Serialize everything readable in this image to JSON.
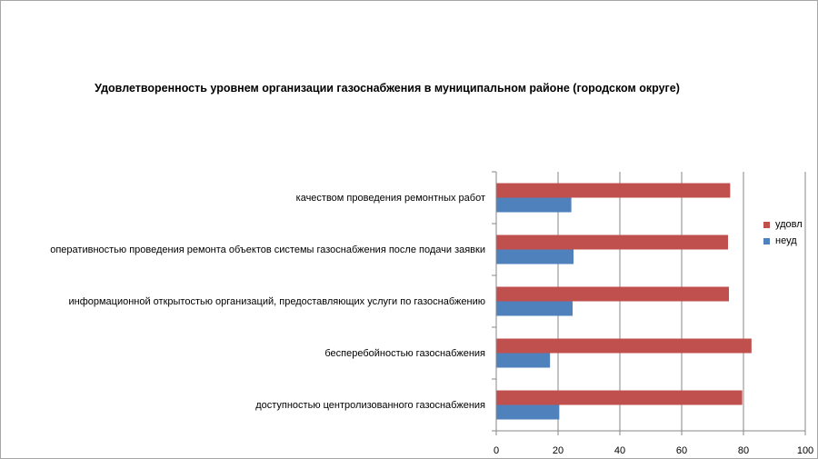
{
  "chart_data": {
    "type": "bar",
    "orientation": "horizontal",
    "title": "Удовлетворенность уровнем организации газоснабжения в муниципальном районе (городском округе)",
    "categories": [
      "качеством проведения ремонтных работ",
      "оперативностью проведения ремонта объектов системы газоснабжения после подачи заявки",
      "информационной открытостью организаций, предоставляющих услуги по газоснабжению",
      "бесперебойностью газоснабжения",
      "доступностью центролизованного газоснабжения"
    ],
    "series": [
      {
        "name": "удовл",
        "color": "#c0504d",
        "values": [
          75.7,
          75.0,
          75.3,
          82.6,
          79.6
        ]
      },
      {
        "name": "неуд",
        "color": "#4f81bd",
        "values": [
          24.3,
          25.0,
          24.7,
          17.4,
          20.4
        ]
      }
    ],
    "xlim": [
      0,
      100
    ],
    "xticks": [
      "0",
      "20",
      "40",
      "60",
      "80",
      "100"
    ],
    "grid": "vertical",
    "legend_position": "right"
  }
}
